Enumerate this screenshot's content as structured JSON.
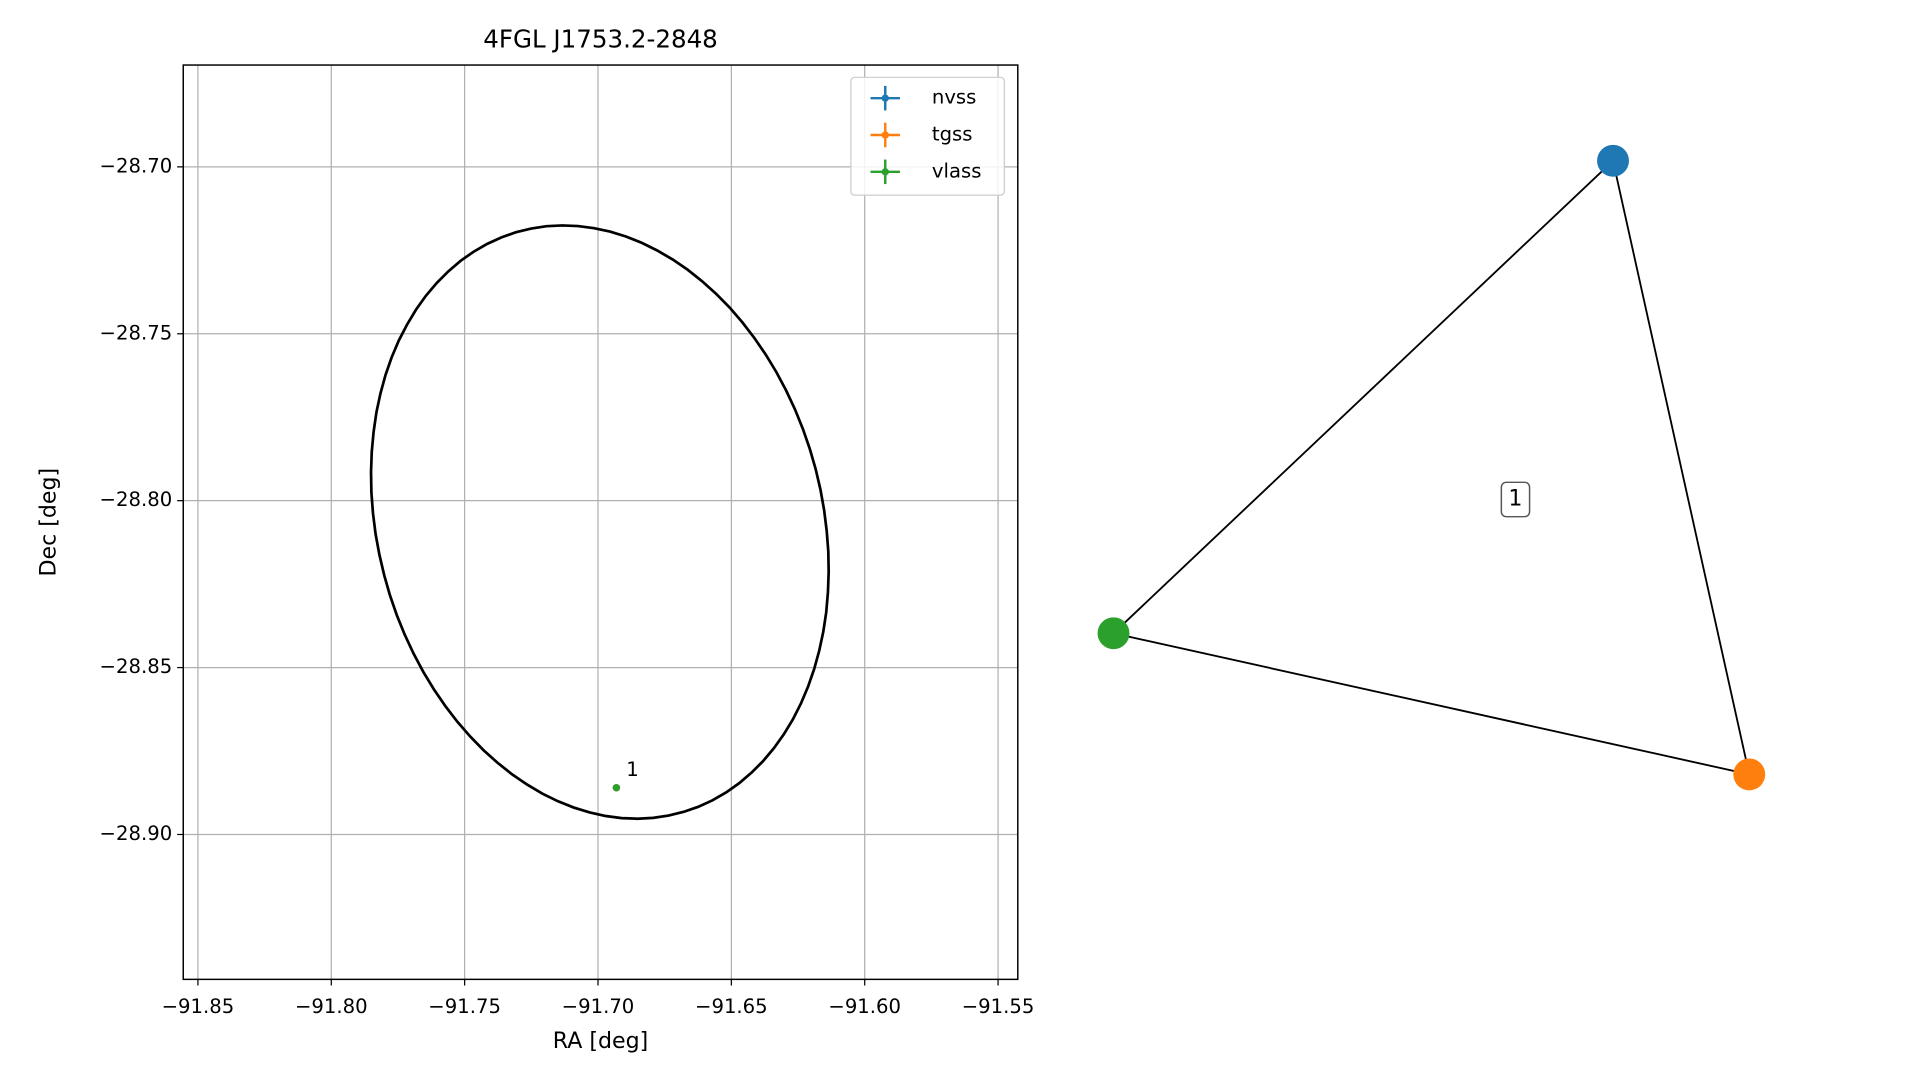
{
  "chart_data": [
    {
      "type": "scatter",
      "title": "4FGL J1753.2-2848",
      "x_label": "RA [deg]",
      "y_label": "Dec [deg]",
      "xlim": [
        -91.8555,
        -91.5426
      ],
      "ylim": [
        -28.9434,
        -28.6695
      ],
      "xticks": [
        {
          "value": -91.85,
          "label": "−91.85"
        },
        {
          "value": -91.8,
          "label": "−91.80"
        },
        {
          "value": -91.75,
          "label": "−91.75"
        },
        {
          "value": -91.7,
          "label": "−91.70"
        },
        {
          "value": -91.65,
          "label": "−91.65"
        },
        {
          "value": -91.6,
          "label": "−91.60"
        },
        {
          "value": -91.55,
          "label": "−91.55"
        }
      ],
      "yticks": [
        {
          "value": -28.7,
          "label": "−28.70"
        },
        {
          "value": -28.75,
          "label": "−28.75"
        },
        {
          "value": -28.8,
          "label": "−28.80"
        },
        {
          "value": -28.85,
          "label": "−28.85"
        },
        {
          "value": -28.9,
          "label": "−28.90"
        }
      ],
      "grid": true,
      "legend": "upper right",
      "series": [
        {
          "name": "nvss",
          "color": "#1f77b4",
          "x": [
            -91.6931
          ],
          "y": [
            -28.886
          ]
        },
        {
          "name": "tgss",
          "color": "#ff7f0e",
          "x": [
            -91.6931
          ],
          "y": [
            -28.886
          ]
        },
        {
          "name": "vlass",
          "color": "#2ca02c",
          "x": [
            -91.6931
          ],
          "y": [
            -28.886
          ]
        }
      ],
      "annotation": {
        "text": "1",
        "x": -91.6931,
        "y": -28.886
      },
      "ellipse": {
        "center": [
          -91.6993,
          -28.8064
        ],
        "semi_axes": [
          0.0942,
          0.0799
        ],
        "angle": 38.8,
        "color": "#000000"
      }
    },
    {
      "type": "graph",
      "nodes": [
        {
          "color": "#1f77b4"
        },
        {
          "color": "#ff7f0e"
        },
        {
          "color": "#2ca02c"
        }
      ],
      "edges": [
        [
          0,
          1
        ],
        [
          0,
          2
        ],
        [
          2,
          1
        ]
      ],
      "edge_label": "1"
    }
  ]
}
